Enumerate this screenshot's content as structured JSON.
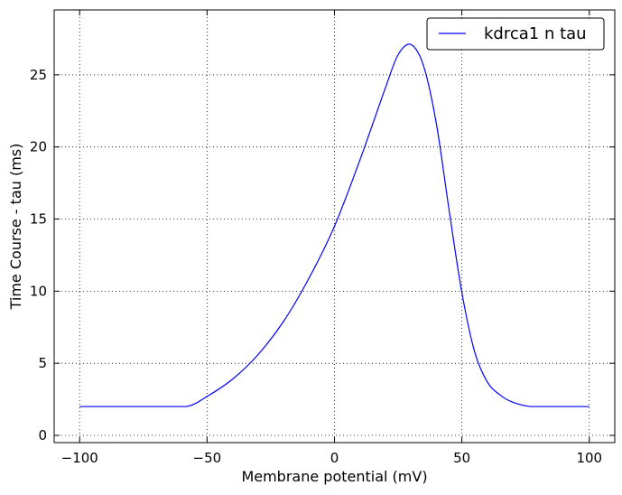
{
  "chart_data": {
    "type": "line",
    "xlabel": "Membrane potential (mV)",
    "ylabel": "Time Course - tau (ms)",
    "xlim": [
      -110,
      110
    ],
    "ylim": [
      -0.5,
      29.5
    ],
    "xticks": [
      -100,
      -50,
      0,
      50,
      100
    ],
    "yticks": [
      0,
      5,
      10,
      15,
      20,
      25
    ],
    "grid": true,
    "legend_position": "top-right",
    "colors": {
      "line": "#0000ff",
      "grid": "#000000",
      "axes": "#000000"
    },
    "series": [
      {
        "name": "kdrca1 n tau",
        "x": [
          -100,
          -90,
          -80,
          -70,
          -58,
          -50,
          -40,
          -30,
          -20,
          -10,
          0,
          10,
          20,
          25,
          30,
          35,
          40,
          45,
          50,
          55,
          60,
          65,
          70,
          77,
          85,
          100
        ],
        "y": [
          2.0,
          2.0,
          2.0,
          2.0,
          2.0,
          2.7,
          3.9,
          5.6,
          7.9,
          10.9,
          14.5,
          19.1,
          24.1,
          26.4,
          27.1,
          25.6,
          21.6,
          15.6,
          9.9,
          5.8,
          3.7,
          2.8,
          2.3,
          2.0,
          2.0,
          2.0
        ]
      }
    ]
  }
}
